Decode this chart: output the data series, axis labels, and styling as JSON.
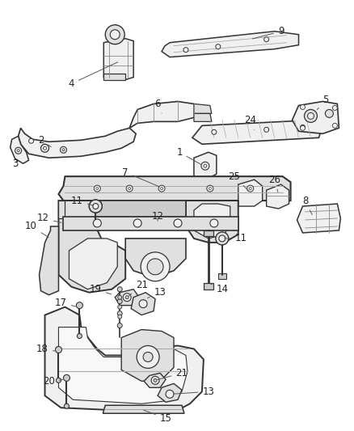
{
  "background_color": "#ffffff",
  "line_color": "#333333",
  "fill_light": "#f0f0f0",
  "fill_mid": "#e0e0e0",
  "fill_dark": "#cccccc",
  "label_fontsize": 8.5,
  "label_color": "#222222",
  "figsize": [
    4.38,
    5.33
  ],
  "dpi": 100
}
